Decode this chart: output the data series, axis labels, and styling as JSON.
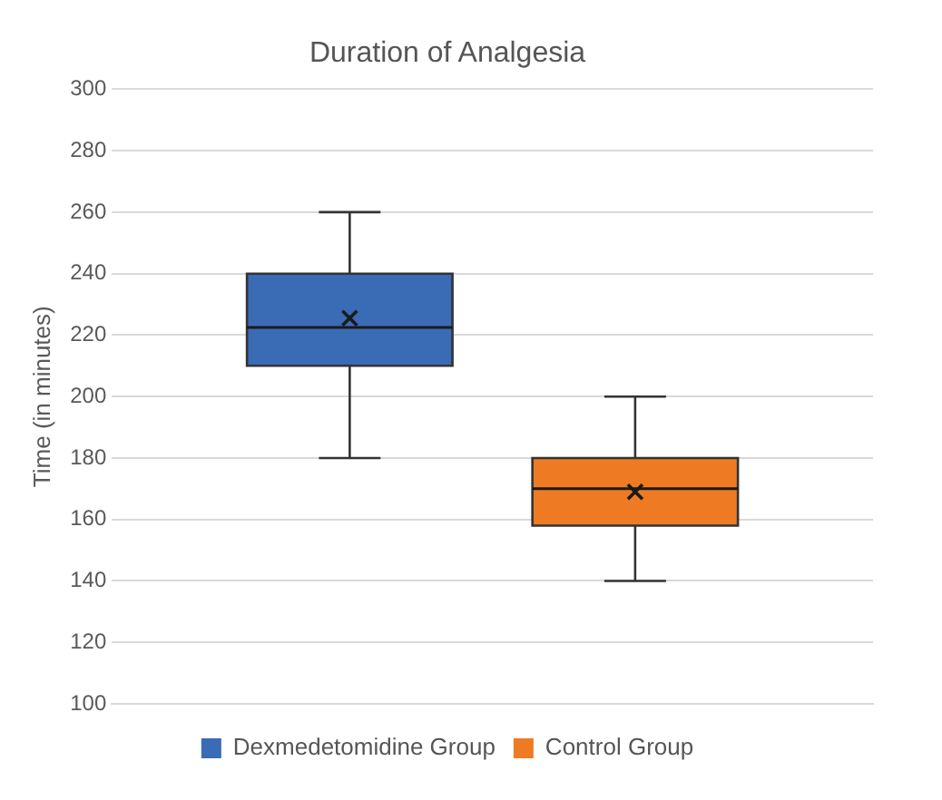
{
  "chart_data": {
    "type": "box",
    "title": "Duration of Analgesia",
    "ylabel": "Time (in minutes)",
    "categories": [
      null
    ],
    "series": [
      {
        "name": "Dexmedetomidine Group",
        "color": "#3a6bb5",
        "boxes": [
          {
            "low": 180,
            "q1": 210,
            "median": 222.5,
            "q3": 240,
            "high": 260,
            "mean": 225.5
          }
        ]
      },
      {
        "name": "Control Group",
        "color": "#ee7b24",
        "boxes": [
          {
            "low": 140,
            "q1": 158,
            "median": 170,
            "q3": 180,
            "high": 200,
            "mean": 169
          }
        ]
      }
    ],
    "ylim": [
      100,
      300
    ],
    "yticks": [
      100,
      120,
      140,
      160,
      180,
      200,
      220,
      240,
      260,
      280,
      300
    ],
    "grid": "y",
    "legend": "bottom",
    "tick_labels": "y"
  }
}
